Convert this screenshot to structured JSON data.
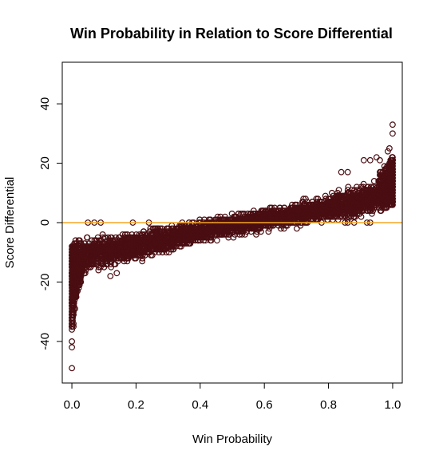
{
  "chart_data": {
    "type": "scatter",
    "title": "Win Probability in Relation to Score Differential",
    "xlabel": "Win Probability",
    "ylabel": "Score Differential",
    "xlim": [
      -0.03,
      1.03
    ],
    "ylim": [
      -54,
      54
    ],
    "xticks": [
      0.0,
      0.2,
      0.4,
      0.6,
      0.8,
      1.0
    ],
    "xtick_labels": [
      "0.0",
      "0.2",
      "0.4",
      "0.6",
      "0.8",
      "1.0"
    ],
    "yticks": [
      -40,
      -20,
      0,
      20,
      40
    ],
    "ytick_labels": [
      "-40",
      "-20",
      "0",
      "20",
      "40"
    ],
    "grid": false,
    "legend": "none",
    "point_color": "#4a0e12",
    "reference_line": {
      "y": 0,
      "color": "#f5a623"
    },
    "trend": {
      "x": [
        0.0,
        0.01,
        0.03,
        0.06,
        0.1,
        0.15,
        0.2,
        0.25,
        0.3,
        0.35,
        0.4,
        0.45,
        0.5,
        0.55,
        0.6,
        0.65,
        0.7,
        0.75,
        0.8,
        0.85,
        0.9,
        0.95,
        0.98,
        1.0
      ],
      "y": [
        -22,
        -16,
        -13,
        -11,
        -10,
        -9,
        -8,
        -7,
        -5.5,
        -4.5,
        -3,
        -2,
        -1,
        0,
        1,
        2,
        3,
        4,
        5,
        6,
        7,
        9,
        12,
        14
      ],
      "spread": [
        14,
        9,
        7,
        6,
        5.5,
        5,
        5,
        5,
        4.5,
        4,
        4,
        3.5,
        3.5,
        3.5,
        3.5,
        3.5,
        4,
        4,
        4.5,
        5,
        5,
        6,
        7,
        8
      ]
    },
    "extremes": [
      {
        "x": 0.0,
        "y": -49
      },
      {
        "x": 0.0,
        "y": -42
      },
      {
        "x": 0.0,
        "y": -40
      },
      {
        "x": 0.005,
        "y": -35
      },
      {
        "x": 0.005,
        "y": -34
      },
      {
        "x": 0.005,
        "y": -31
      },
      {
        "x": 0.01,
        "y": -29
      },
      {
        "x": 0.05,
        "y": 0
      },
      {
        "x": 0.07,
        "y": 0
      },
      {
        "x": 0.09,
        "y": 0
      },
      {
        "x": 0.19,
        "y": 0
      },
      {
        "x": 0.24,
        "y": 0
      },
      {
        "x": 0.14,
        "y": -17
      },
      {
        "x": 0.12,
        "y": -18
      },
      {
        "x": 0.91,
        "y": 21
      },
      {
        "x": 0.93,
        "y": 21
      },
      {
        "x": 0.95,
        "y": 22
      },
      {
        "x": 0.96,
        "y": 21
      },
      {
        "x": 0.985,
        "y": 24
      },
      {
        "x": 0.99,
        "y": 25
      },
      {
        "x": 0.99,
        "y": 20
      },
      {
        "x": 1.0,
        "y": 33
      },
      {
        "x": 1.0,
        "y": 30
      },
      {
        "x": 0.84,
        "y": 17
      },
      {
        "x": 0.86,
        "y": 17
      },
      {
        "x": 0.86,
        "y": 0
      },
      {
        "x": 0.88,
        "y": 0
      },
      {
        "x": 0.92,
        "y": 0
      },
      {
        "x": 0.93,
        "y": 0
      }
    ]
  }
}
